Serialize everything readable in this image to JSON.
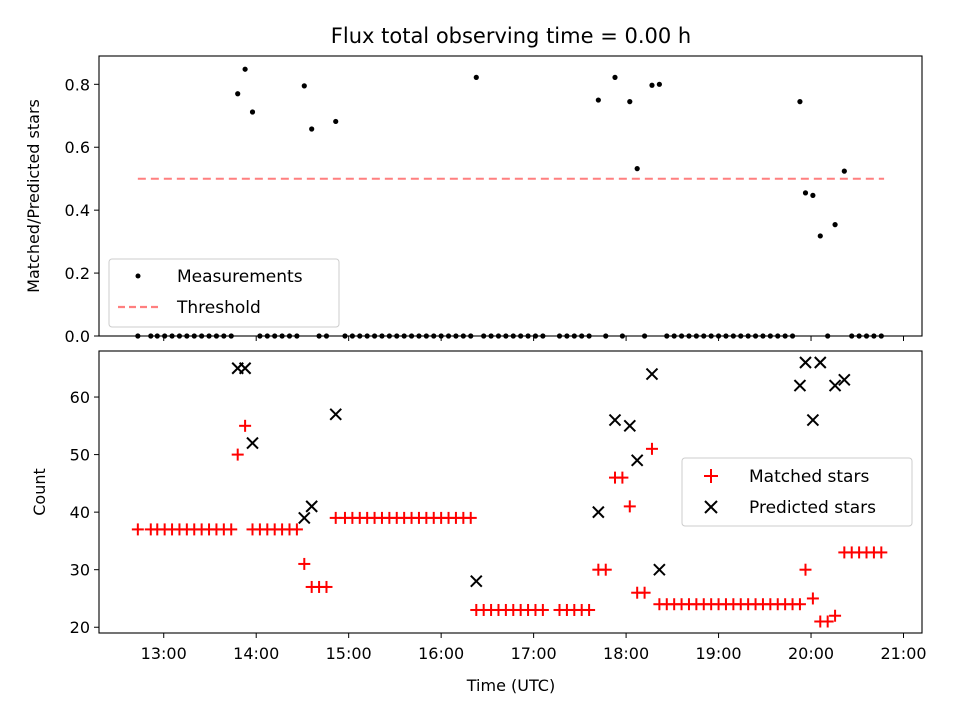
{
  "chart_data": [
    {
      "type": "scatter",
      "title": "Flux total observing time = 0.00 h",
      "xlabel": "",
      "ylabel": "Matched/Predicted stars",
      "xlim": [
        12.3,
        21.2
      ],
      "ylim": [
        0,
        0.89
      ],
      "yticks": [
        0.0,
        0.2,
        0.4,
        0.6,
        0.8
      ],
      "ytick_labels": [
        "0.0",
        "0.2",
        "0.4",
        "0.6",
        "0.8"
      ],
      "legend_location": "lower-left",
      "series": [
        {
          "name": "Measurements",
          "marker": "dot",
          "color": "#000000",
          "x": [
            12.72,
            12.86,
            12.93,
            13.01,
            13.09,
            13.17,
            13.25,
            13.33,
            13.41,
            13.49,
            13.57,
            13.65,
            13.73,
            13.8,
            13.88,
            13.96,
            14.04,
            14.12,
            14.2,
            14.28,
            14.36,
            14.44,
            14.52,
            14.6,
            14.68,
            14.76,
            14.86,
            14.96,
            15.04,
            15.12,
            15.2,
            15.28,
            15.36,
            15.44,
            15.52,
            15.6,
            15.68,
            15.76,
            15.84,
            15.92,
            16.0,
            16.08,
            16.16,
            16.24,
            16.32,
            16.38,
            16.46,
            16.54,
            16.62,
            16.7,
            16.78,
            16.86,
            16.94,
            17.02,
            17.1,
            17.28,
            17.36,
            17.44,
            17.52,
            17.6,
            17.7,
            17.78,
            17.88,
            17.96,
            18.04,
            18.12,
            18.2,
            18.28,
            18.36,
            18.44,
            18.52,
            18.6,
            18.68,
            18.76,
            18.84,
            18.92,
            19.0,
            19.08,
            19.16,
            19.24,
            19.32,
            19.4,
            19.48,
            19.56,
            19.64,
            19.72,
            19.8,
            19.88,
            19.94,
            20.02,
            20.1,
            20.18,
            20.26,
            20.36,
            20.44,
            20.52,
            20.6,
            20.68,
            20.76
          ],
          "y": [
            0,
            0,
            0,
            0,
            0,
            0,
            0,
            0,
            0,
            0,
            0,
            0,
            0,
            0.77,
            0.848,
            0.712,
            0,
            0,
            0,
            0,
            0,
            0,
            0.795,
            0.658,
            0,
            0,
            0.682,
            0,
            0,
            0,
            0,
            0,
            0,
            0,
            0,
            0,
            0,
            0,
            0,
            0,
            0,
            0,
            0,
            0,
            0,
            0.822,
            0,
            0,
            0,
            0,
            0,
            0,
            0,
            0,
            0,
            0,
            0,
            0,
            0,
            0,
            0.75,
            0,
            0.822,
            0,
            0.745,
            0.532,
            0,
            0.797,
            0.8,
            0,
            0,
            0,
            0,
            0,
            0,
            0,
            0,
            0,
            0,
            0,
            0,
            0,
            0,
            0,
            0,
            0,
            0,
            0.745,
            0.455,
            0.447,
            0.318,
            0,
            0.354,
            0.524,
            0,
            0,
            0,
            0,
            0
          ]
        },
        {
          "name": "Threshold",
          "marker": "dashed-line",
          "color": "#ff7f7f",
          "x": [
            12.72,
            20.79
          ],
          "y": [
            0.5,
            0.5
          ]
        }
      ]
    },
    {
      "type": "scatter",
      "title": "",
      "xlabel": "Time (UTC)",
      "ylabel": "Count",
      "xlim": [
        12.3,
        21.2
      ],
      "ylim": [
        19,
        68
      ],
      "yticks": [
        20,
        30,
        40,
        50,
        60
      ],
      "ytick_labels": [
        "20",
        "30",
        "40",
        "50",
        "60"
      ],
      "xticks": [
        13,
        14,
        15,
        16,
        17,
        18,
        19,
        20,
        21
      ],
      "xtick_labels": [
        "13:00",
        "14:00",
        "15:00",
        "16:00",
        "17:00",
        "18:00",
        "19:00",
        "20:00",
        "21:00"
      ],
      "legend_location": "center-right",
      "series": [
        {
          "name": "Matched stars",
          "marker": "plus",
          "color": "#ff0000",
          "x": [
            12.72,
            12.86,
            12.93,
            13.01,
            13.09,
            13.17,
            13.25,
            13.33,
            13.41,
            13.49,
            13.57,
            13.65,
            13.73,
            13.8,
            13.88,
            13.96,
            14.04,
            14.12,
            14.2,
            14.28,
            14.36,
            14.44,
            14.52,
            14.6,
            14.68,
            14.76,
            14.86,
            14.96,
            15.04,
            15.12,
            15.2,
            15.28,
            15.36,
            15.44,
            15.52,
            15.6,
            15.68,
            15.76,
            15.84,
            15.92,
            16.0,
            16.08,
            16.16,
            16.24,
            16.32,
            16.38,
            16.46,
            16.54,
            16.62,
            16.7,
            16.78,
            16.86,
            16.94,
            17.02,
            17.1,
            17.28,
            17.36,
            17.44,
            17.52,
            17.6,
            17.7,
            17.78,
            17.88,
            17.96,
            18.04,
            18.12,
            18.2,
            18.28,
            18.36,
            18.44,
            18.52,
            18.6,
            18.68,
            18.76,
            18.84,
            18.92,
            19.0,
            19.08,
            19.16,
            19.24,
            19.32,
            19.4,
            19.48,
            19.56,
            19.64,
            19.72,
            19.8,
            19.88,
            19.94,
            20.02,
            20.1,
            20.18,
            20.26,
            20.36,
            20.44,
            20.52,
            20.6,
            20.68,
            20.76
          ],
          "y": [
            37,
            37,
            37,
            37,
            37,
            37,
            37,
            37,
            37,
            37,
            37,
            37,
            37,
            50,
            55,
            37,
            37,
            37,
            37,
            37,
            37,
            37,
            31,
            27,
            27,
            27,
            39,
            39,
            39,
            39,
            39,
            39,
            39,
            39,
            39,
            39,
            39,
            39,
            39,
            39,
            39,
            39,
            39,
            39,
            39,
            23,
            23,
            23,
            23,
            23,
            23,
            23,
            23,
            23,
            23,
            23,
            23,
            23,
            23,
            23,
            30,
            30,
            46,
            46,
            41,
            26,
            26,
            51,
            24,
            24,
            24,
            24,
            24,
            24,
            24,
            24,
            24,
            24,
            24,
            24,
            24,
            24,
            24,
            24,
            24,
            24,
            24,
            24,
            30,
            25,
            21,
            21,
            22,
            33,
            33,
            33,
            33,
            33,
            33
          ]
        },
        {
          "name": "Predicted stars",
          "marker": "x",
          "color": "#000000",
          "x": [
            13.8,
            13.88,
            13.96,
            14.52,
            14.6,
            14.86,
            16.38,
            17.7,
            17.88,
            18.04,
            18.12,
            18.28,
            18.36,
            19.88,
            19.94,
            20.02,
            20.1,
            20.26,
            20.36
          ],
          "y": [
            65,
            65,
            52,
            39,
            41,
            57,
            28,
            40,
            56,
            55,
            49,
            64,
            30,
            62,
            66,
            56,
            66,
            62,
            63
          ]
        }
      ]
    }
  ]
}
